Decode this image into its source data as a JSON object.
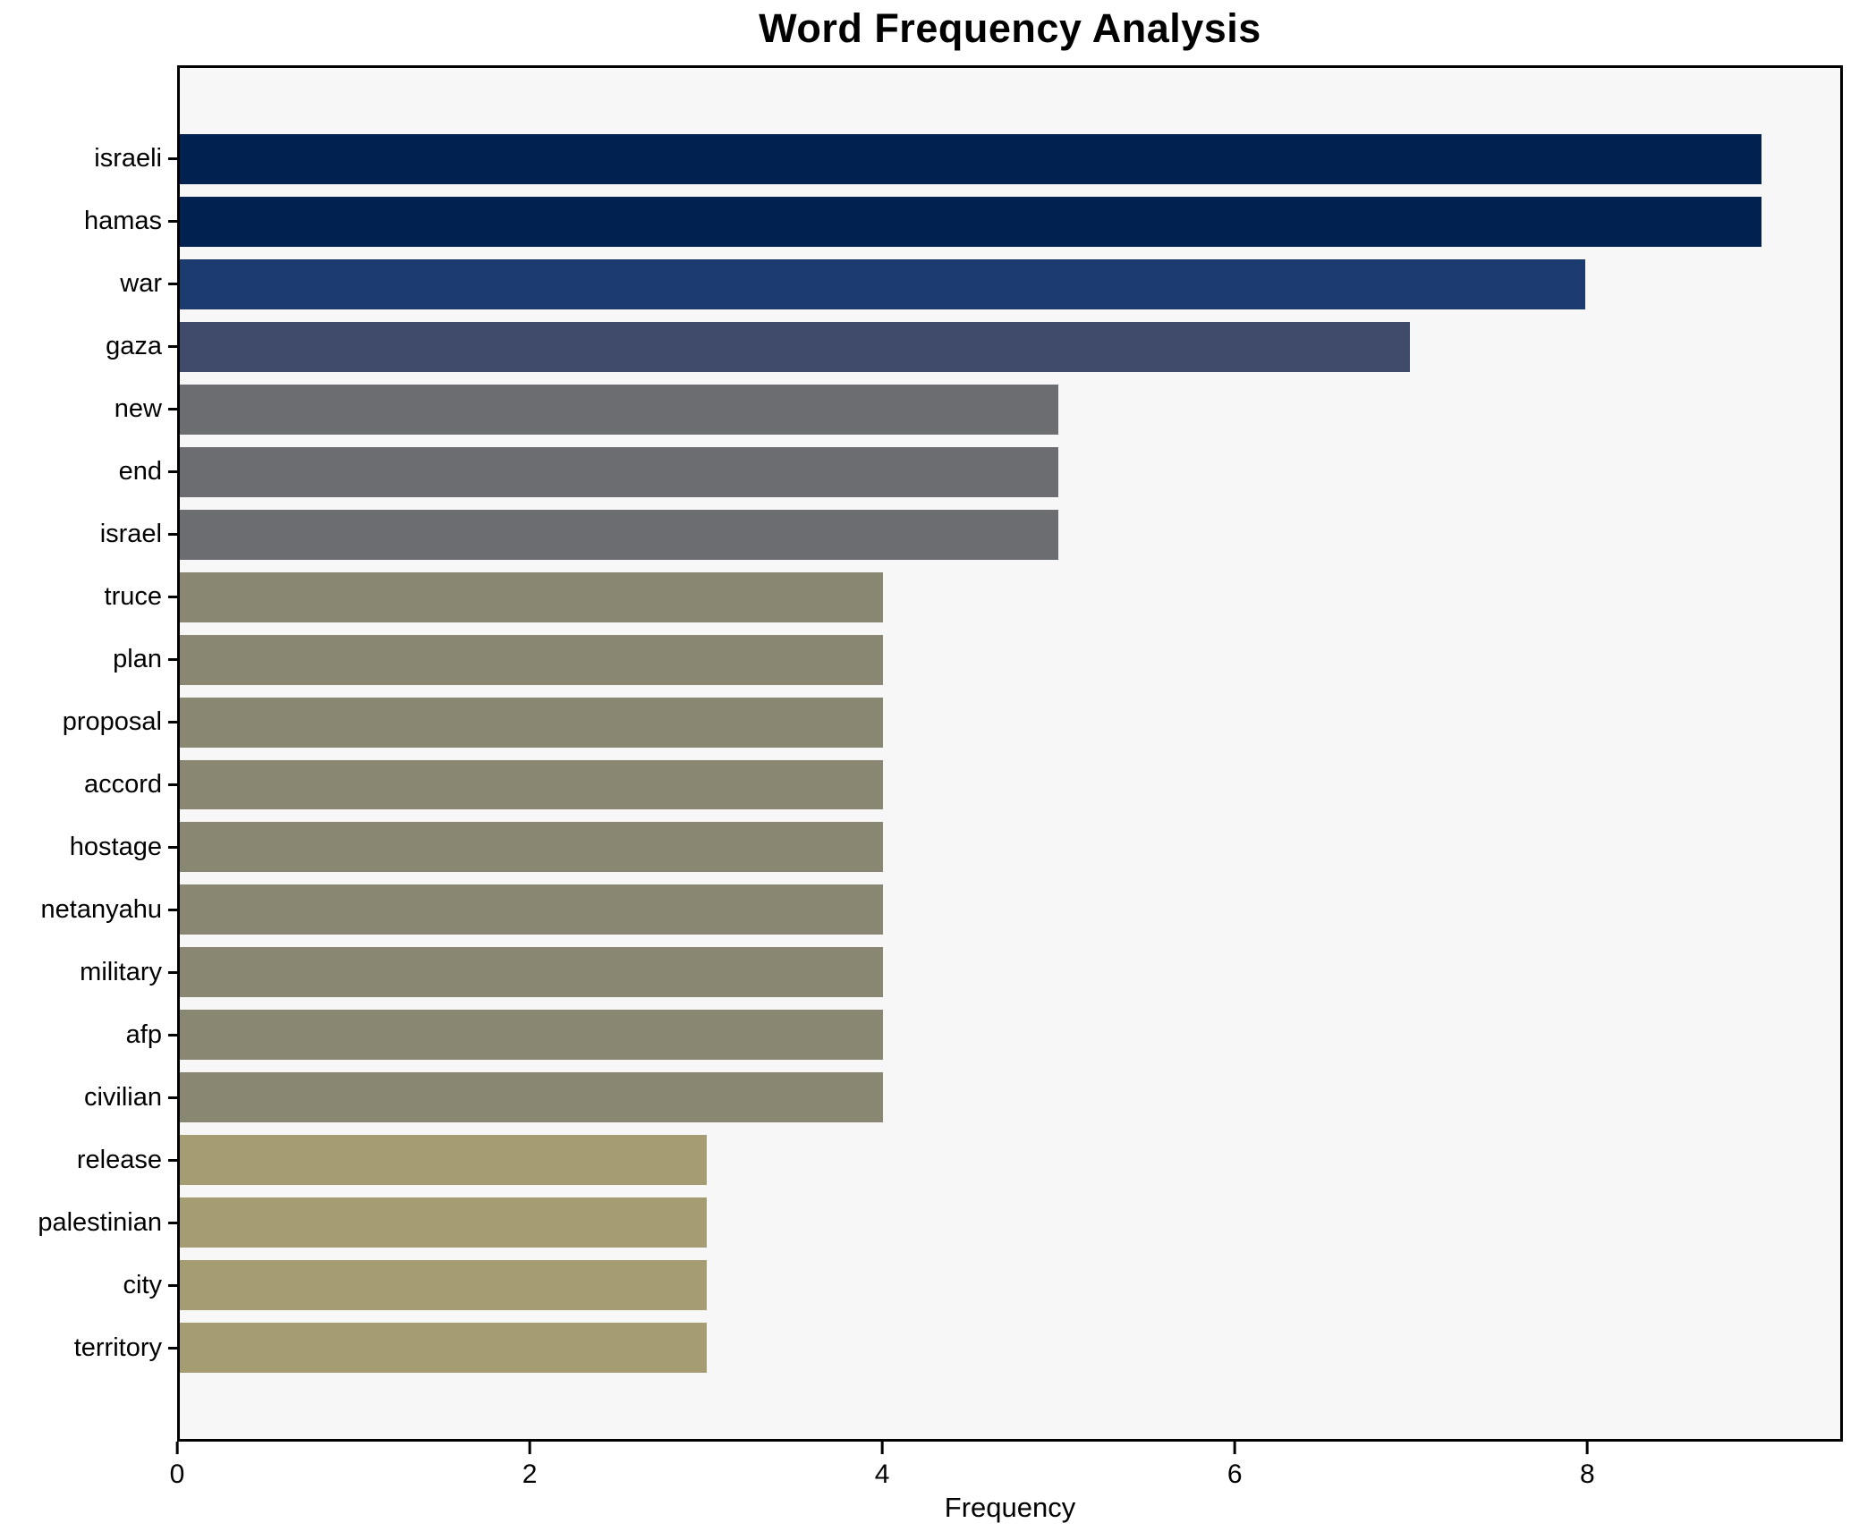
{
  "chart_data": {
    "type": "bar",
    "orientation": "horizontal",
    "title": "Word Frequency Analysis",
    "xlabel": "Frequency",
    "ylabel": "",
    "categories": [
      "israeli",
      "hamas",
      "war",
      "gaza",
      "new",
      "end",
      "israel",
      "truce",
      "plan",
      "proposal",
      "accord",
      "hostage",
      "netanyahu",
      "military",
      "afp",
      "civilian",
      "release",
      "palestinian",
      "city",
      "territory"
    ],
    "values": [
      9,
      9,
      8,
      7,
      5,
      5,
      5,
      4,
      4,
      4,
      4,
      4,
      4,
      4,
      4,
      4,
      3,
      3,
      3,
      3
    ],
    "bar_colors": [
      "#012250",
      "#012250",
      "#1c3b6e",
      "#404b6b",
      "#6c6d71",
      "#6c6d71",
      "#6c6d71",
      "#898772",
      "#898772",
      "#898772",
      "#898772",
      "#898772",
      "#898772",
      "#898772",
      "#898772",
      "#898772",
      "#a69c71",
      "#a69c71",
      "#a69c71",
      "#a69c71"
    ],
    "xticks": [
      0,
      2,
      4,
      6,
      8
    ],
    "xlim": [
      0,
      9.45
    ],
    "grid": false,
    "legend": null,
    "plot_background": "#f7f7f7",
    "figure_background": "#ffffff",
    "spine_color": "#000000"
  }
}
